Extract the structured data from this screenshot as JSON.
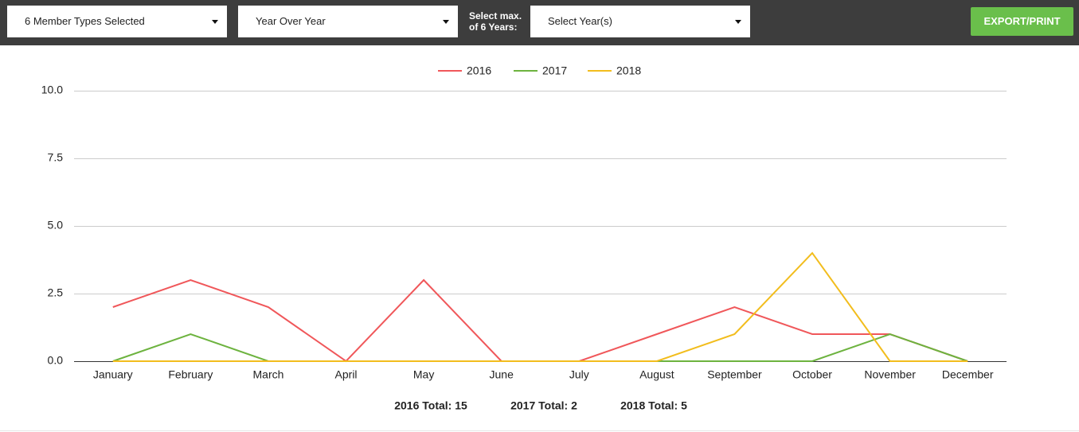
{
  "toolbar": {
    "member_types": "6 Member Types Selected",
    "mode": "Year Over Year",
    "years_label_1": "Select max.",
    "years_label_2": "of 6 Years:",
    "years": "Select Year(s)",
    "export": "EXPORT/PRINT"
  },
  "chart_data": {
    "type": "line",
    "categories": [
      "January",
      "February",
      "March",
      "April",
      "May",
      "June",
      "July",
      "August",
      "September",
      "October",
      "November",
      "December"
    ],
    "series": [
      {
        "name": "2016",
        "color": "#f0575a",
        "values": [
          2,
          3,
          2,
          0,
          3,
          0,
          0,
          1,
          2,
          1,
          1,
          0
        ]
      },
      {
        "name": "2017",
        "color": "#6db33f",
        "values": [
          0,
          1,
          0,
          0,
          0,
          0,
          0,
          0,
          0,
          0,
          1,
          0
        ]
      },
      {
        "name": "2018",
        "color": "#f2bd1d",
        "values": [
          0,
          0,
          0,
          0,
          0,
          0,
          0,
          0,
          1,
          4,
          0,
          0
        ]
      }
    ],
    "ylim": [
      0,
      10
    ],
    "yticks": [
      {
        "value": 0,
        "label": "0.0"
      },
      2.5,
      {
        "value": 5,
        "label": "5.0"
      },
      7.5,
      {
        "value": 10,
        "label": "10.0"
      }
    ],
    "grid": true,
    "legend": "top",
    "totals": [
      "2016 Total: 15",
      "2017 Total: 2",
      "2018 Total: 5"
    ]
  }
}
